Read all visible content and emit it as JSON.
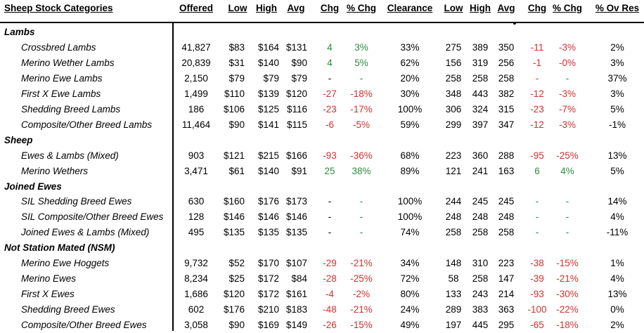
{
  "headers": {
    "category": "Sheep Stock Categories",
    "offered": "Offered",
    "low": "Low",
    "high": "High",
    "avg": "Avg",
    "chg": "Chg",
    "pct_chg": "% Chg",
    "clearance": "Clearance",
    "low2": "Low",
    "high2": "High",
    "avg2": "Avg",
    "chg2": "Chg",
    "pct_chg2": "% Chg",
    "pct_ov_res": "% Ov Res"
  },
  "rows": [
    {
      "kind": "category",
      "label": "Lambs"
    },
    {
      "kind": "item",
      "label": "Crossbred Lambs",
      "offered": "41,827",
      "low": "$83",
      "high": "$164",
      "avg": "$131",
      "chg": "4",
      "chg_tone": "pos",
      "pct_chg": "3%",
      "pct_tone": "pos",
      "clearance": "33%",
      "low2": "275",
      "high2": "389",
      "avg2": "350",
      "chg2": "-11",
      "chg2_tone": "neg",
      "pct_chg2": "-3%",
      "pct2_tone": "neg",
      "ov_res": "2%"
    },
    {
      "kind": "item",
      "label": "Merino Wether Lambs",
      "offered": "20,839",
      "low": "$31",
      "high": "$140",
      "avg": "$90",
      "chg": "4",
      "chg_tone": "pos",
      "pct_chg": "5%",
      "pct_tone": "pos",
      "clearance": "62%",
      "low2": "156",
      "high2": "319",
      "avg2": "256",
      "chg2": "-1",
      "chg2_tone": "neg",
      "pct_chg2": "-0%",
      "pct2_tone": "neg",
      "ov_res": "3%"
    },
    {
      "kind": "item",
      "label": "Merino Ewe Lambs",
      "offered": "2,150",
      "low": "$79",
      "high": "$79",
      "avg": "$79",
      "chg": "-",
      "chg_tone": "plain",
      "pct_chg": "-",
      "pct_tone": "pos",
      "clearance": "20%",
      "low2": "258",
      "high2": "258",
      "avg2": "258",
      "chg2": "-",
      "chg2_tone": "neg",
      "pct_chg2": "-",
      "pct2_tone": "pos",
      "ov_res": "37%"
    },
    {
      "kind": "item",
      "label": "First X Ewe Lambs",
      "offered": "1,499",
      "low": "$110",
      "high": "$139",
      "avg": "$120",
      "chg": "-27",
      "chg_tone": "neg",
      "pct_chg": "-18%",
      "pct_tone": "neg",
      "clearance": "30%",
      "low2": "348",
      "high2": "443",
      "avg2": "382",
      "chg2": "-12",
      "chg2_tone": "neg",
      "pct_chg2": "-3%",
      "pct2_tone": "neg",
      "ov_res": "3%"
    },
    {
      "kind": "item",
      "label": "Shedding Breed Lambs",
      "offered": "186",
      "low": "$106",
      "high": "$125",
      "avg": "$116",
      "chg": "-23",
      "chg_tone": "neg",
      "pct_chg": "-17%",
      "pct_tone": "neg",
      "clearance": "100%",
      "low2": "306",
      "high2": "324",
      "avg2": "315",
      "chg2": "-23",
      "chg2_tone": "neg",
      "pct_chg2": "-7%",
      "pct2_tone": "neg",
      "ov_res": "5%"
    },
    {
      "kind": "item",
      "label": "Composite/Other Breed Lambs",
      "offered": "11,464",
      "low": "$90",
      "high": "$141",
      "avg": "$115",
      "chg": "-6",
      "chg_tone": "neg",
      "pct_chg": "-5%",
      "pct_tone": "neg",
      "clearance": "59%",
      "low2": "299",
      "high2": "397",
      "avg2": "347",
      "chg2": "-12",
      "chg2_tone": "neg",
      "pct_chg2": "-3%",
      "pct2_tone": "neg",
      "ov_res": "-1%"
    },
    {
      "kind": "category",
      "label": "Sheep"
    },
    {
      "kind": "item",
      "label": "Ewes & Lambs (Mixed)",
      "offered": "903",
      "low": "$121",
      "high": "$215",
      "avg": "$166",
      "chg": "-93",
      "chg_tone": "neg",
      "pct_chg": "-36%",
      "pct_tone": "neg",
      "clearance": "68%",
      "low2": "223",
      "high2": "360",
      "avg2": "288",
      "chg2": "-95",
      "chg2_tone": "neg",
      "pct_chg2": "-25%",
      "pct2_tone": "neg",
      "ov_res": "13%"
    },
    {
      "kind": "item",
      "label": "Merino Wethers",
      "offered": "3,471",
      "low": "$61",
      "high": "$140",
      "avg": "$91",
      "chg": "25",
      "chg_tone": "pos",
      "pct_chg": "38%",
      "pct_tone": "pos",
      "clearance": "89%",
      "low2": "121",
      "high2": "241",
      "avg2": "163",
      "chg2": "6",
      "chg2_tone": "pos",
      "pct_chg2": "4%",
      "pct2_tone": "pos",
      "ov_res": "5%"
    },
    {
      "kind": "category",
      "label": "Joined Ewes"
    },
    {
      "kind": "item",
      "label": "SIL Shedding Breed Ewes",
      "offered": "630",
      "low": "$160",
      "high": "$176",
      "avg": "$173",
      "chg": "-",
      "chg_tone": "plain",
      "pct_chg": "-",
      "pct_tone": "pos",
      "clearance": "100%",
      "low2": "244",
      "high2": "245",
      "avg2": "245",
      "chg2": "-",
      "chg2_tone": "pos",
      "pct_chg2": "-",
      "pct2_tone": "pos",
      "ov_res": "14%"
    },
    {
      "kind": "item",
      "label": "SIL Composite/Other Breed Ewes",
      "offered": "128",
      "low": "$146",
      "high": "$146",
      "avg": "$146",
      "chg": "-",
      "chg_tone": "plain",
      "pct_chg": "-",
      "pct_tone": "pos",
      "clearance": "100%",
      "low2": "248",
      "high2": "248",
      "avg2": "248",
      "chg2": "-",
      "chg2_tone": "pos",
      "pct_chg2": "-",
      "pct2_tone": "pos",
      "ov_res": "4%"
    },
    {
      "kind": "item",
      "label": "Joined Ewes & Lambs (Mixed)",
      "offered": "495",
      "low": "$135",
      "high": "$135",
      "avg": "$135",
      "chg": "-",
      "chg_tone": "plain",
      "pct_chg": "-",
      "pct_tone": "pos",
      "clearance": "74%",
      "low2": "258",
      "high2": "258",
      "avg2": "258",
      "chg2": "-",
      "chg2_tone": "pos",
      "pct_chg2": "-",
      "pct2_tone": "pos",
      "ov_res": "-11%"
    },
    {
      "kind": "category",
      "label": "Not Station Mated (NSM)"
    },
    {
      "kind": "item",
      "label": "Merino Ewe Hoggets",
      "offered": "9,732",
      "low": "$52",
      "high": "$170",
      "avg": "$107",
      "chg": "-29",
      "chg_tone": "neg",
      "pct_chg": "-21%",
      "pct_tone": "neg",
      "clearance": "34%",
      "low2": "148",
      "high2": "310",
      "avg2": "223",
      "chg2": "-38",
      "chg2_tone": "neg",
      "pct_chg2": "-15%",
      "pct2_tone": "neg",
      "ov_res": "1%"
    },
    {
      "kind": "item",
      "label": "Merino Ewes",
      "offered": "8,234",
      "low": "$25",
      "high": "$172",
      "avg": "$84",
      "chg": "-28",
      "chg_tone": "neg",
      "pct_chg": "-25%",
      "pct_tone": "neg",
      "clearance": "72%",
      "low2": "58",
      "high2": "258",
      "avg2": "147",
      "chg2": "-39",
      "chg2_tone": "neg",
      "pct_chg2": "-21%",
      "pct2_tone": "neg",
      "ov_res": "4%"
    },
    {
      "kind": "item",
      "label": "First X Ewes",
      "offered": "1,686",
      "low": "$120",
      "high": "$172",
      "avg": "$161",
      "chg": "-4",
      "chg_tone": "neg",
      "pct_chg": "-2%",
      "pct_tone": "neg",
      "clearance": "80%",
      "low2": "133",
      "high2": "243",
      "avg2": "214",
      "chg2": "-93",
      "chg2_tone": "neg",
      "pct_chg2": "-30%",
      "pct2_tone": "neg",
      "ov_res": "13%"
    },
    {
      "kind": "item",
      "label": "Shedding Breed Ewes",
      "offered": "602",
      "low": "$176",
      "high": "$210",
      "avg": "$183",
      "chg": "-48",
      "chg_tone": "neg",
      "pct_chg": "-21%",
      "pct_tone": "neg",
      "clearance": "24%",
      "low2": "289",
      "high2": "383",
      "avg2": "363",
      "chg2": "-100",
      "chg2_tone": "neg",
      "pct_chg2": "-22%",
      "pct2_tone": "neg",
      "ov_res": "0%"
    },
    {
      "kind": "item",
      "label": "Composite/Other Breed Ewes",
      "offered": "3,058",
      "low": "$90",
      "high": "$169",
      "avg": "$149",
      "chg": "-26",
      "chg_tone": "neg",
      "pct_chg": "-15%",
      "pct_tone": "neg",
      "clearance": "49%",
      "low2": "197",
      "high2": "445",
      "avg2": "295",
      "chg2": "-65",
      "chg2_tone": "neg",
      "pct_chg2": "-18%",
      "pct2_tone": "neg",
      "ov_res": "2%"
    }
  ],
  "colors": {
    "positive": "#2e8b3e",
    "negative": "#d23030"
  }
}
